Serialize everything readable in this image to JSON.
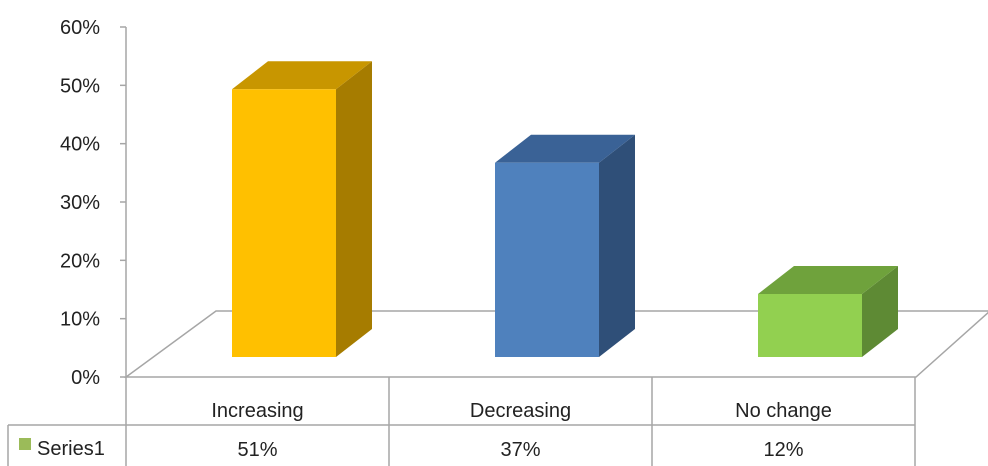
{
  "chart_data": {
    "type": "bar",
    "title": "",
    "xlabel": "",
    "ylabel": "",
    "categories": [
      "Increasing",
      "Decreasing",
      "No change"
    ],
    "series": [
      {
        "name": "Series1",
        "values": [
          0.51,
          0.37,
          0.12
        ]
      }
    ],
    "data_table": {
      "series_label": "Series1",
      "values": [
        "51%",
        "37%",
        "12%"
      ]
    },
    "ylim": [
      0,
      0.6
    ],
    "y_ticks": [
      "0%",
      "10%",
      "20%",
      "30%",
      "40%",
      "50%",
      "60%"
    ],
    "grid": false,
    "legend": "data-table",
    "bar_style": "3d-column",
    "colors": {
      "bars": [
        "#FFC000",
        "#4F81BD",
        "#92D050"
      ],
      "bars_side": [
        "#A67C00",
        "#2F4F78",
        "#5E8A34"
      ],
      "bars_top": [
        "#C89600",
        "#3A6296",
        "#6FA23C"
      ],
      "axis": "#A6A6A6",
      "legend_key": "#9BBB59"
    }
  }
}
